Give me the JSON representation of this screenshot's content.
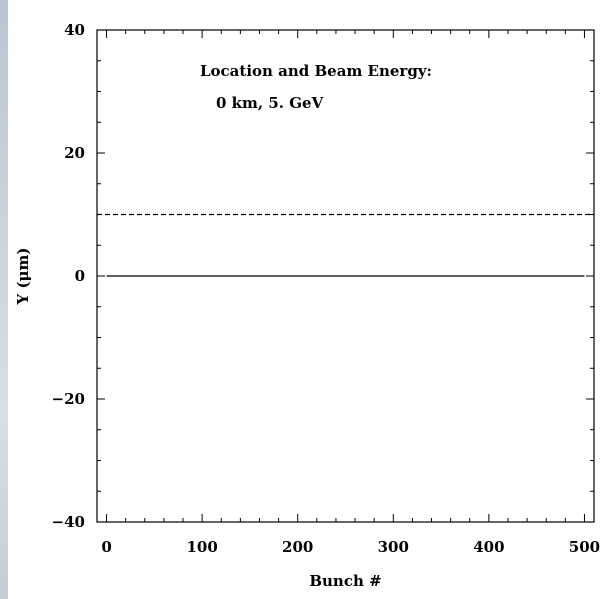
{
  "chart_data": {
    "type": "line",
    "xlabel": "Bunch #",
    "ylabel": "Y (μm)",
    "xlim": [
      -10,
      510
    ],
    "ylim": [
      -40,
      40
    ],
    "x_ticks": [
      0,
      100,
      200,
      300,
      400,
      500
    ],
    "x_tick_labels": [
      "0",
      "100",
      "200",
      "300",
      "400",
      "500"
    ],
    "y_ticks": [
      -40,
      -20,
      0,
      20,
      40
    ],
    "y_tick_labels": [
      "−40",
      "−20",
      "0",
      "20",
      "40"
    ],
    "annotation": {
      "line1": "Location and Beam Energy:",
      "line2": "0 km, 5. GeV"
    },
    "series": [
      {
        "style": "solid",
        "x": [
          0,
          500
        ],
        "values": [
          0,
          0
        ]
      },
      {
        "style": "dashed",
        "x": [
          -10,
          510
        ],
        "values": [
          10,
          10
        ]
      }
    ],
    "grid": false,
    "legend": "none"
  }
}
